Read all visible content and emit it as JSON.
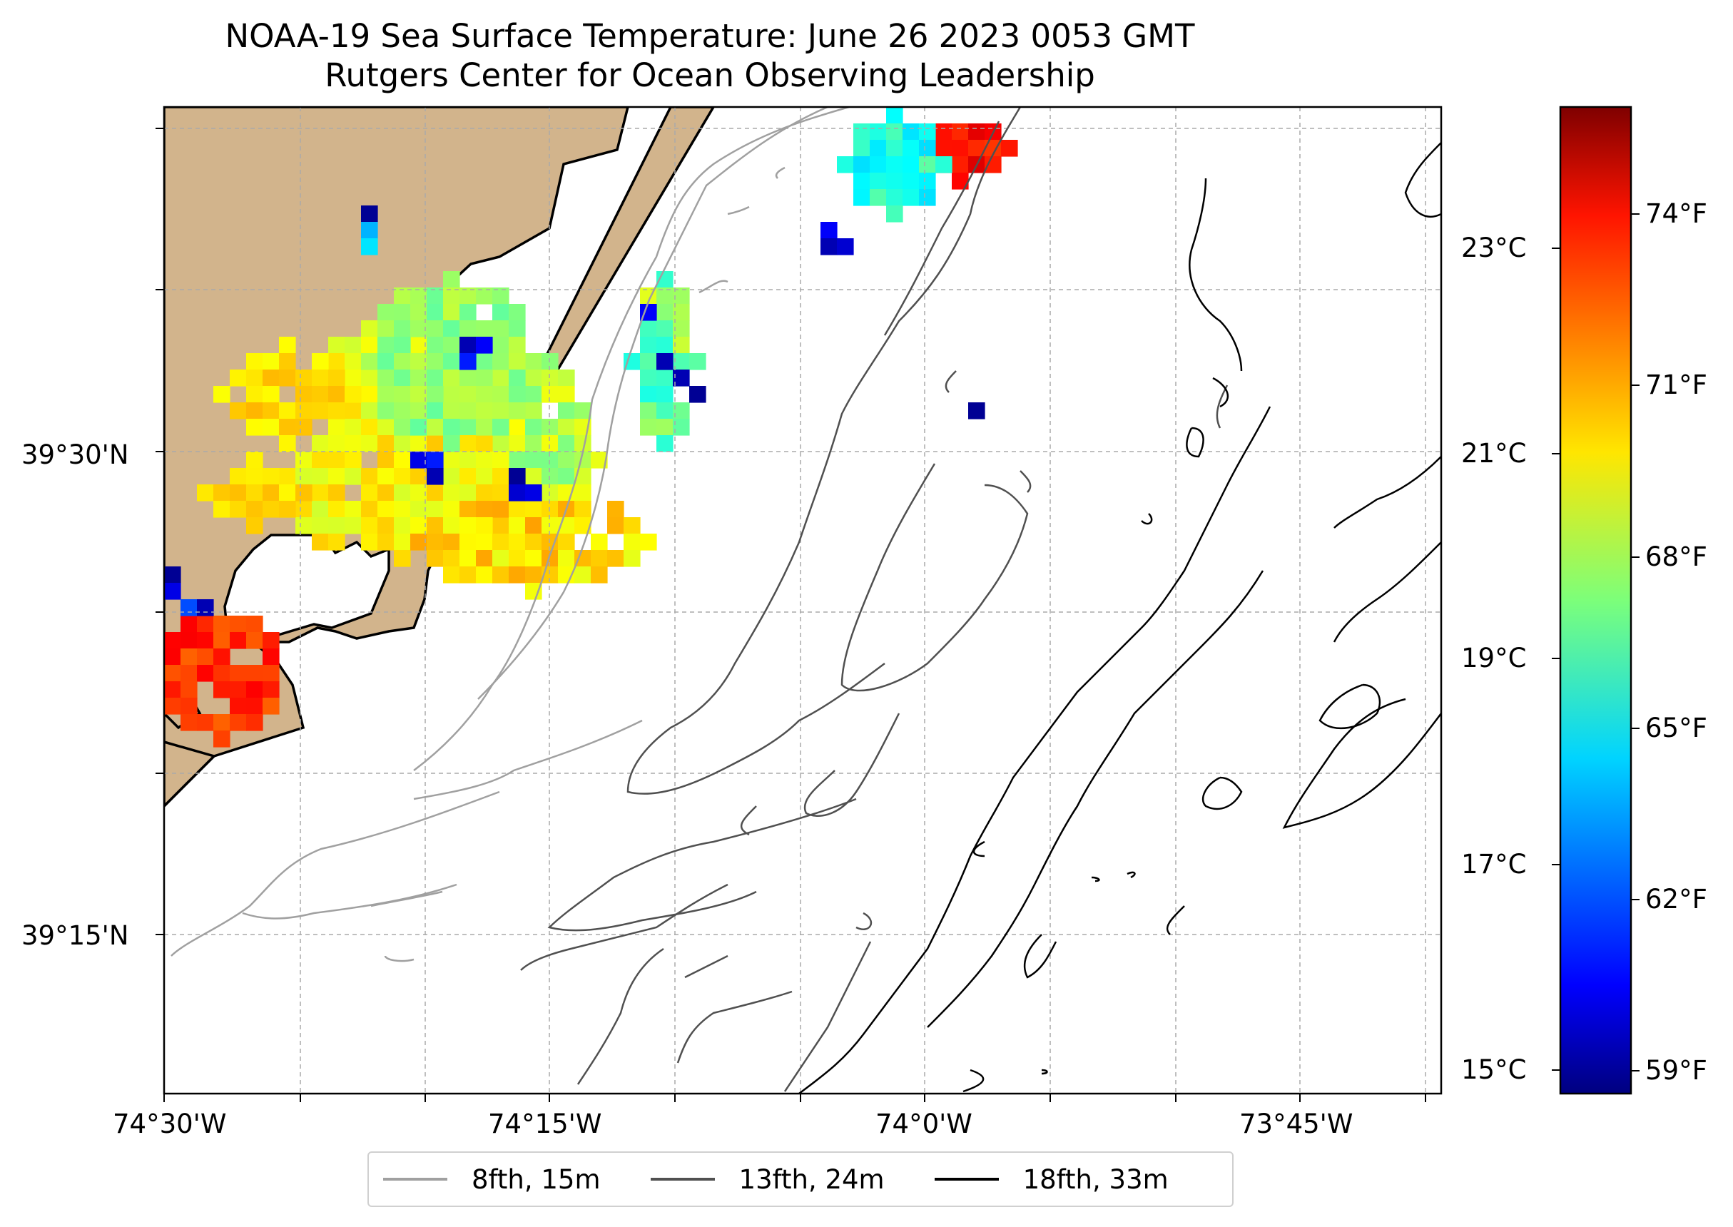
{
  "title": {
    "line1": "NOAA-19 Sea Surface Temperature: June 26 2023 0053 GMT",
    "line2": "Rutgers Center for Ocean Observing Leadership"
  },
  "map": {
    "lon_ticks": [
      "74°30'W",
      "74°15'W",
      "74°0'W",
      "73°45'W"
    ],
    "lat_ticks": [
      "39°30'N",
      "39°15'N"
    ],
    "land_color": "#d2b48c",
    "gridlines": "dashed"
  },
  "colorbar": {
    "celsius_ticks": [
      "23°C",
      "21°C",
      "19°C",
      "17°C",
      "15°C"
    ],
    "fahrenheit_ticks": [
      "74°F",
      "71°F",
      "68°F",
      "65°F",
      "62°F",
      "59°F"
    ],
    "colormap": "jet",
    "range_f": [
      58.6,
      76.2
    ]
  },
  "legend": {
    "entries": [
      {
        "label": "8fth, 15m",
        "color": "#a0a0a0"
      },
      {
        "label": "13fth, 24m",
        "color": "#505050"
      },
      {
        "label": "18fth, 33m",
        "color": "#000000"
      }
    ]
  }
}
